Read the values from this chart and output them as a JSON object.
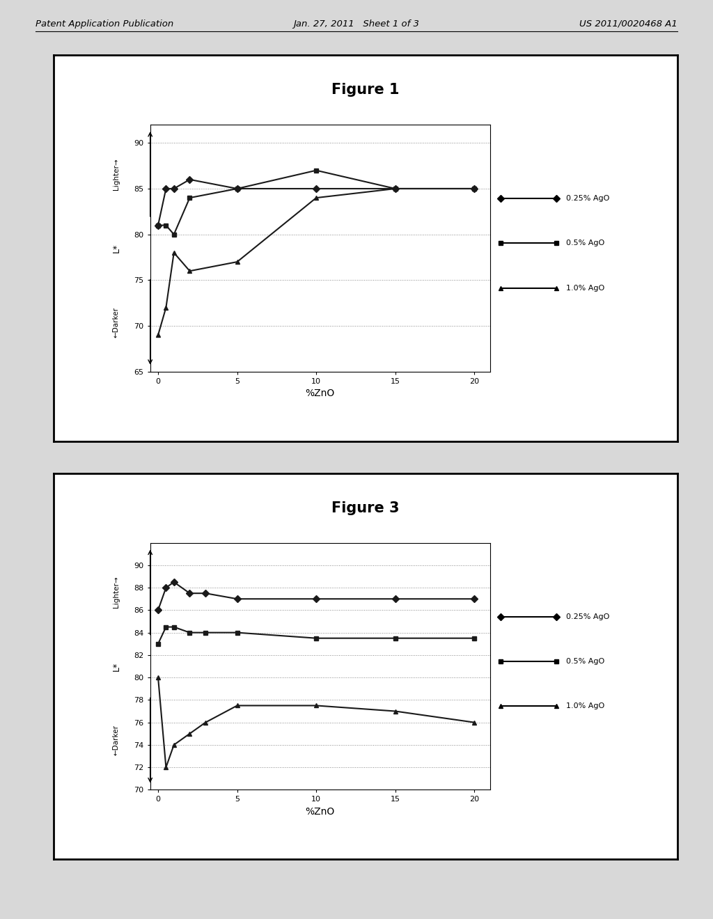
{
  "fig1": {
    "title": "Figure 1",
    "series": [
      {
        "label": "0.25% AgO",
        "x": [
          0,
          0.5,
          1,
          2,
          5,
          10,
          15,
          20
        ],
        "y": [
          81,
          85,
          85,
          86,
          85,
          85,
          85,
          85
        ],
        "marker": "D",
        "color": "#1a1a1a"
      },
      {
        "label": "0.5% AgO",
        "x": [
          0,
          0.5,
          1,
          2,
          5,
          10,
          15,
          20
        ],
        "y": [
          81,
          81,
          80,
          84,
          85,
          87,
          85,
          85
        ],
        "marker": "s",
        "color": "#1a1a1a"
      },
      {
        "label": "1.0% AgO",
        "x": [
          0,
          0.5,
          1,
          2,
          5,
          10,
          15,
          20
        ],
        "y": [
          69,
          72,
          78,
          76,
          77,
          84,
          85,
          85
        ],
        "marker": "^",
        "color": "#1a1a1a"
      }
    ],
    "xlim": [
      -0.5,
      21
    ],
    "ylim": [
      65,
      92
    ],
    "yticks": [
      65,
      70,
      75,
      80,
      85,
      90
    ],
    "xticks": [
      0,
      5,
      10,
      15,
      20
    ],
    "xlabel": "%ZnO",
    "ylabel_lighter": "Lighter→",
    "ylabel_darker": "←Darker",
    "ylabel_L": "L*"
  },
  "fig3": {
    "title": "Figure 3",
    "series": [
      {
        "label": "0.25% AgO",
        "x": [
          0,
          0.5,
          1,
          2,
          3,
          5,
          10,
          15,
          20
        ],
        "y": [
          86,
          88,
          88.5,
          87.5,
          87.5,
          87,
          87,
          87,
          87
        ],
        "marker": "D",
        "color": "#1a1a1a"
      },
      {
        "label": "0.5% AgO",
        "x": [
          0,
          0.5,
          1,
          2,
          3,
          5,
          10,
          15,
          20
        ],
        "y": [
          83,
          84.5,
          84.5,
          84,
          84,
          84,
          83.5,
          83.5,
          83.5
        ],
        "marker": "s",
        "color": "#1a1a1a"
      },
      {
        "label": "1.0% AgO",
        "x": [
          0,
          0.5,
          1,
          2,
          3,
          5,
          10,
          15,
          20
        ],
        "y": [
          80,
          72,
          74,
          75,
          76,
          77.5,
          77.5,
          77,
          76
        ],
        "marker": "^",
        "color": "#1a1a1a"
      }
    ],
    "xlim": [
      -0.5,
      21
    ],
    "ylim": [
      70,
      92
    ],
    "yticks": [
      70,
      72,
      74,
      76,
      78,
      80,
      82,
      84,
      86,
      88,
      90
    ],
    "xticks": [
      0,
      5,
      10,
      15,
      20
    ],
    "xlabel": "%ZnO",
    "ylabel_lighter": "Lighter→",
    "ylabel_darker": "←Darker",
    "ylabel_L": "L*"
  },
  "page_header": {
    "left": "Patent Application Publication",
    "center": "Jan. 27, 2011   Sheet 1 of 3",
    "right": "US 2011/0020468 A1"
  },
  "bg_color": "#d8d8d8",
  "box_bg": "#ffffff",
  "font_color": "#000000",
  "grid_color": "#888888",
  "line_color": "#111111"
}
